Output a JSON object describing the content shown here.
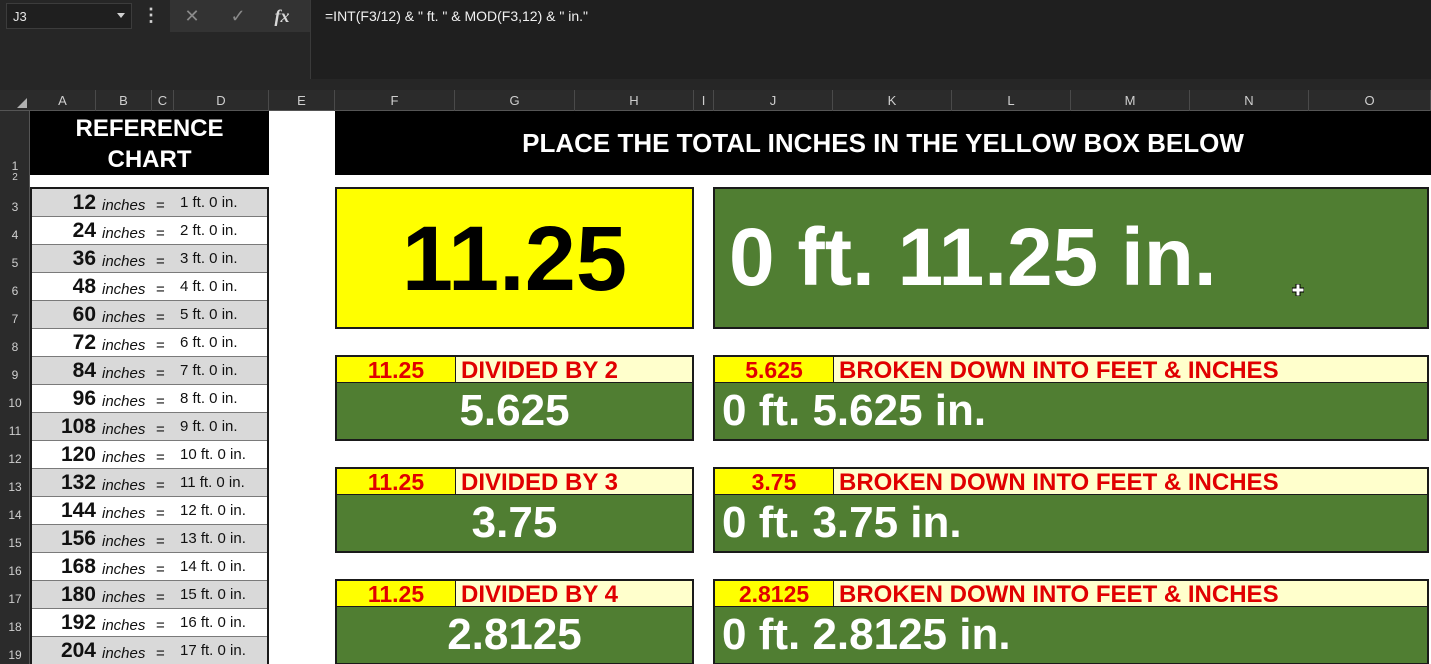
{
  "formula_bar": {
    "name_box": "J3",
    "menu_glyph": "⋮",
    "cancel_glyph": "✕",
    "enter_glyph": "✓",
    "function_glyph": "fx",
    "formula": "=INT(F3/12) & \" ft. \" & MOD(F3,12) & \" in.\""
  },
  "columns": [
    "A",
    "B",
    "C",
    "D",
    "E",
    "F",
    "G",
    "H",
    "I",
    "J",
    "K",
    "L",
    "M",
    "N",
    "O"
  ],
  "rows": [
    "1",
    "2",
    "3",
    "4",
    "5",
    "6",
    "7",
    "8",
    "9",
    "10",
    "11",
    "12",
    "13",
    "14",
    "15",
    "16",
    "17",
    "18",
    "19"
  ],
  "reference_chart": {
    "title_line1": "REFERENCE",
    "title_line2": "CHART",
    "unit": "inches",
    "equals": "=",
    "rows": [
      {
        "inches": "12",
        "result": "1 ft. 0 in."
      },
      {
        "inches": "24",
        "result": "2 ft. 0 in."
      },
      {
        "inches": "36",
        "result": "3 ft. 0 in."
      },
      {
        "inches": "48",
        "result": "4 ft. 0 in."
      },
      {
        "inches": "60",
        "result": "5 ft. 0 in."
      },
      {
        "inches": "72",
        "result": "6 ft. 0 in."
      },
      {
        "inches": "84",
        "result": "7 ft. 0 in."
      },
      {
        "inches": "96",
        "result": "8 ft. 0 in."
      },
      {
        "inches": "108",
        "result": "9 ft. 0 in."
      },
      {
        "inches": "120",
        "result": "10 ft. 0 in."
      },
      {
        "inches": "132",
        "result": "11 ft. 0 in."
      },
      {
        "inches": "144",
        "result": "12 ft. 0 in."
      },
      {
        "inches": "156",
        "result": "13 ft. 0 in."
      },
      {
        "inches": "168",
        "result": "14 ft. 0 in."
      },
      {
        "inches": "180",
        "result": "15 ft. 0 in."
      },
      {
        "inches": "192",
        "result": "16 ft. 0 in."
      },
      {
        "inches": "204",
        "result": "17 ft. 0 in."
      }
    ]
  },
  "main": {
    "title": "PLACE THE TOTAL INCHES IN THE YELLOW BOX BELOW",
    "input_value": "11.25",
    "result_text": "0 ft. 11.25 in."
  },
  "divisions": [
    {
      "source": "11.25",
      "label": "DIVIDED BY 2",
      "quotient": "5.625",
      "breakdown_label": "BROKEN DOWN INTO FEET & INCHES",
      "breakdown": "0 ft. 5.625 in."
    },
    {
      "source": "11.25",
      "label": "DIVIDED BY 3",
      "quotient": "3.75",
      "breakdown_label": "BROKEN DOWN INTO FEET & INCHES",
      "breakdown": "0 ft. 3.75 in."
    },
    {
      "source": "11.25",
      "label": "DIVIDED BY 4",
      "quotient": "2.8125",
      "breakdown_label": "BROKEN DOWN INTO FEET & INCHES",
      "breakdown": "0 ft. 2.8125 in."
    }
  ],
  "colors": {
    "yellow": "#ffff00",
    "green": "#507e32",
    "red_text": "#e00000",
    "header_black": "#000000",
    "light_yellow": "#ffffcc"
  }
}
